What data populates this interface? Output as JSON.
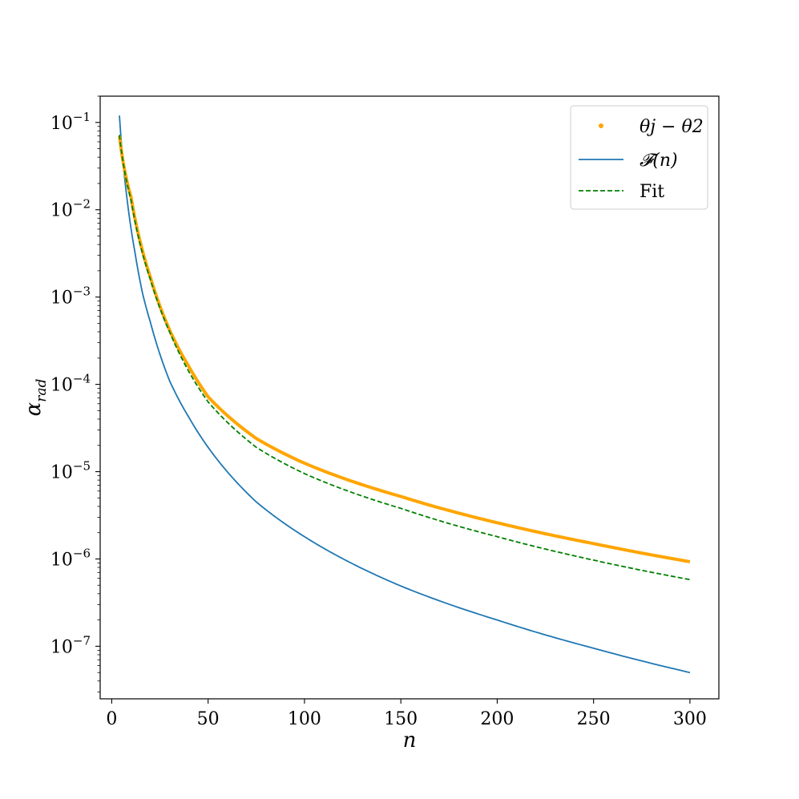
{
  "chart_data": {
    "type": "line",
    "xlabel": "n",
    "ylabel": "α_rad",
    "yscale": "log",
    "xlim": [
      -6,
      315
    ],
    "ylim": [
      2.5e-08,
      0.2
    ],
    "xticks": [
      0,
      50,
      100,
      150,
      200,
      250,
      300
    ],
    "yticks": [
      1e-07,
      1e-06,
      1e-05,
      0.0001,
      0.001,
      0.01,
      0.1
    ],
    "ytick_labels": [
      {
        "base": "10",
        "exp": "−7"
      },
      {
        "base": "10",
        "exp": "−6"
      },
      {
        "base": "10",
        "exp": "−5"
      },
      {
        "base": "10",
        "exp": "−4"
      },
      {
        "base": "10",
        "exp": "−3"
      },
      {
        "base": "10",
        "exp": "−2"
      },
      {
        "base": "10",
        "exp": "−1"
      }
    ],
    "grid": false,
    "legend_position": "upper right",
    "series": [
      {
        "name": "θj − θ2",
        "style": "dots",
        "color": "#FFA500",
        "x": [
          4,
          10,
          20,
          30,
          40,
          50,
          75,
          100,
          150,
          200,
          250,
          300
        ],
        "y": [
          0.07,
          0.014,
          0.0017,
          0.00042,
          0.00016,
          7.2e-05,
          2.4e-05,
          1.25e-05,
          5.2e-06,
          2.6e-06,
          1.5e-06,
          9.3e-07
        ]
      },
      {
        "name": "𝓕(n)",
        "style": "solid",
        "color": "#1F77B4",
        "x": [
          4,
          8,
          12,
          16,
          20,
          30,
          40,
          50,
          75,
          100,
          150,
          200,
          250,
          300
        ],
        "y": [
          0.12,
          0.013,
          0.0033,
          0.0011,
          0.00052,
          0.00011,
          4.2e-05,
          1.9e-05,
          4.5e-06,
          1.8e-06,
          4.9e-07,
          2e-07,
          9.5e-08,
          5e-08
        ]
      },
      {
        "name": "Fit",
        "style": "dashed",
        "color": "#008000",
        "x": [
          4,
          10,
          20,
          30,
          40,
          50,
          75,
          100,
          150,
          200,
          250,
          300
        ],
        "y": [
          0.072,
          0.013,
          0.0016,
          0.0004,
          0.00014,
          6.3e-05,
          1.9e-05,
          9.5e-06,
          3.8e-06,
          1.8e-06,
          9.7e-07,
          5.8e-07
        ]
      }
    ]
  }
}
